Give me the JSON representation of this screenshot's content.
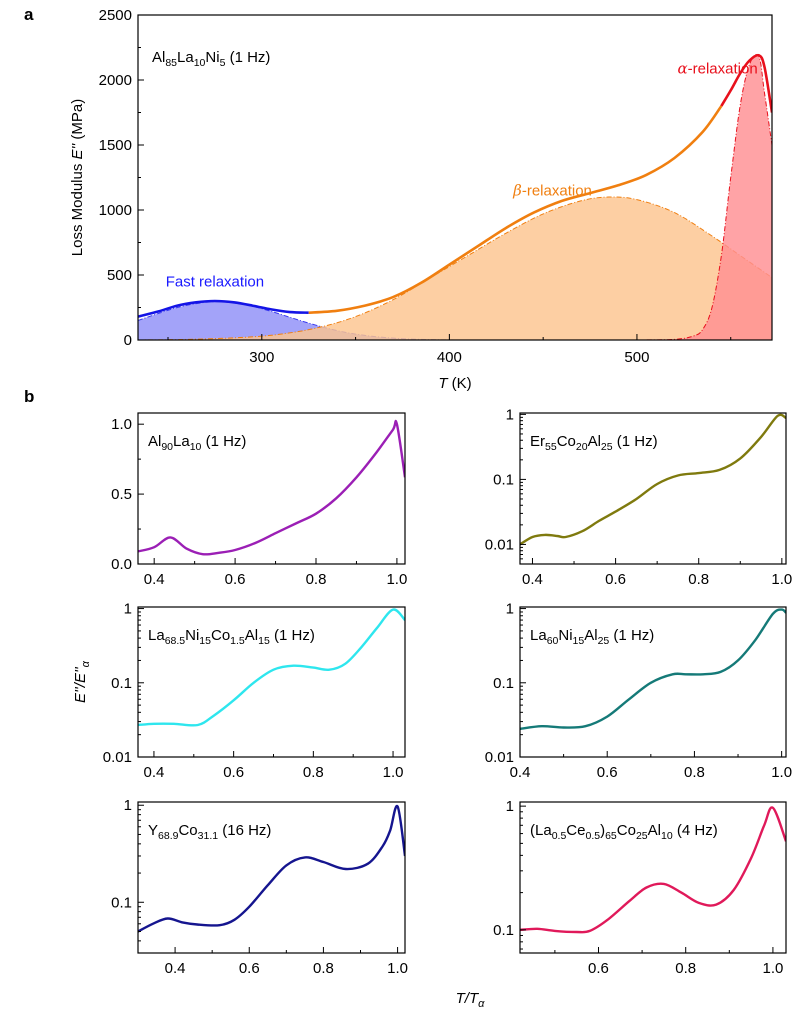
{
  "chart_data": [
    {
      "id": "a",
      "panel_label": "a",
      "type": "area",
      "title": "Al85La10Ni5 (1 Hz)",
      "title_parts": [
        [
          "Al",
          ""
        ],
        [
          "85",
          "sub"
        ],
        [
          "La",
          ""
        ],
        [
          "10",
          "sub"
        ],
        [
          "Ni",
          ""
        ],
        [
          "5",
          "sub"
        ],
        [
          " (1 Hz)",
          ""
        ]
      ],
      "xlabel": "T (K)",
      "ylabel": "Loss Modulus E'' (MPa)",
      "xlim": [
        234,
        572
      ],
      "ylim": [
        0,
        2500
      ],
      "xticks": [
        300,
        400,
        500
      ],
      "xminor": [
        250,
        350,
        450,
        550
      ],
      "yticks": [
        0,
        500,
        1000,
        1500,
        2000,
        2500
      ],
      "yminor": [
        250,
        750,
        1250,
        1750,
        2250
      ],
      "annotations": [
        {
          "text": "Fast relaxation",
          "color": "#1a1aff",
          "x": 275,
          "y": 410
        },
        {
          "text": "β-relaxation",
          "greek": "β",
          "color": "#f07f10",
          "x": 455,
          "y": 1110
        },
        {
          "text": "α-relaxation",
          "greek": "α",
          "color": "#e8101c",
          "x": 543,
          "y": 2050
        }
      ],
      "series": [
        {
          "name": "Fast relaxation fit",
          "kind": "fill",
          "fill": "#8f8ff8",
          "stroke": "#3a3af0",
          "x": [
            234,
            245,
            255,
            265,
            275,
            285,
            295,
            305,
            315,
            325,
            335,
            345,
            355,
            365,
            375,
            385,
            395,
            405
          ],
          "y": [
            150,
            205,
            250,
            280,
            295,
            285,
            260,
            220,
            175,
            130,
            90,
            58,
            35,
            20,
            10,
            5,
            2,
            0
          ]
        },
        {
          "name": "β-relaxation fit",
          "kind": "fill",
          "fill": "#fdc58f",
          "stroke": "#f07f10",
          "x": [
            234,
            260,
            290,
            310,
            330,
            350,
            370,
            390,
            410,
            430,
            450,
            470,
            485,
            500,
            520,
            540,
            555,
            572
          ],
          "y": [
            0,
            5,
            20,
            45,
            95,
            180,
            310,
            480,
            650,
            820,
            970,
            1070,
            1100,
            1080,
            980,
            800,
            650,
            480
          ]
        },
        {
          "name": "α-relaxation fit",
          "kind": "fill",
          "fill": "#ff8f92",
          "stroke": "#e8101c",
          "x": [
            500,
            520,
            530,
            535,
            540,
            545,
            550,
            555,
            560,
            565,
            568,
            572
          ],
          "y": [
            0,
            5,
            30,
            80,
            250,
            650,
            1250,
            1800,
            2120,
            2180,
            1900,
            1500
          ]
        },
        {
          "name": "Measured E''",
          "kind": "line",
          "segments": [
            {
              "color": "#1414e6",
              "x": [
                234,
                245,
                255,
                265,
                275,
                285,
                295,
                305,
                315,
                325
              ],
              "y": [
                180,
                220,
                265,
                290,
                300,
                290,
                265,
                235,
                215,
                210
              ]
            },
            {
              "color": "#f07f10",
              "x": [
                325,
                340,
                355,
                370,
                385,
                400,
                415,
                430,
                445,
                460,
                475,
                490,
                505,
                520,
                535,
                545
              ],
              "y": [
                210,
                225,
                265,
                330,
                440,
                580,
                720,
                860,
                980,
                1070,
                1130,
                1190,
                1270,
                1400,
                1600,
                1800
              ]
            },
            {
              "color": "#e8101c",
              "x": [
                545,
                550,
                555,
                560,
                565,
                568,
                572
              ],
              "y": [
                1800,
                1920,
                2050,
                2150,
                2190,
                2100,
                1750
              ]
            }
          ]
        }
      ]
    },
    {
      "id": "b1",
      "type": "line",
      "panel_label": "b",
      "title": "Al90La10 (1 Hz)",
      "title_parts": [
        [
          "Al",
          ""
        ],
        [
          "90",
          "sub"
        ],
        [
          "La",
          ""
        ],
        [
          "10",
          "sub"
        ],
        [
          " (1 Hz)",
          ""
        ]
      ],
      "yscale": "linear",
      "xlim": [
        0.36,
        1.02
      ],
      "ylim": [
        0,
        1.08
      ],
      "xticks": [
        0.4,
        0.6,
        0.8,
        1.0
      ],
      "xticklabels": [
        "0.4",
        "0.6",
        "0.8",
        "1.0"
      ],
      "yticks": [
        0,
        0.5,
        1.0
      ],
      "yticklabels": [
        "0.0",
        "0.5",
        "1.0"
      ],
      "yminor": [
        0.25,
        0.75
      ],
      "color": "#9b1fb5",
      "x": [
        0.36,
        0.4,
        0.44,
        0.48,
        0.52,
        0.56,
        0.6,
        0.65,
        0.7,
        0.75,
        0.8,
        0.85,
        0.9,
        0.95,
        0.99,
        1.0,
        1.02
      ],
      "y": [
        0.09,
        0.12,
        0.19,
        0.11,
        0.07,
        0.08,
        0.1,
        0.15,
        0.22,
        0.29,
        0.36,
        0.47,
        0.62,
        0.8,
        0.96,
        1.0,
        0.62
      ]
    },
    {
      "id": "b2",
      "type": "line",
      "title": "Er55Co20Al25 (1 Hz)",
      "title_parts": [
        [
          "Er",
          ""
        ],
        [
          "55",
          "sub"
        ],
        [
          "Co",
          ""
        ],
        [
          "20",
          "sub"
        ],
        [
          "Al",
          ""
        ],
        [
          "25",
          "sub"
        ],
        [
          " (1 Hz)",
          ""
        ]
      ],
      "yscale": "log",
      "xlim": [
        0.37,
        1.01
      ],
      "ylim": [
        0.005,
        1.05
      ],
      "xticks": [
        0.4,
        0.6,
        0.8,
        1.0
      ],
      "xticklabels": [
        "0.4",
        "0.6",
        "0.8",
        "1.0"
      ],
      "yticks": [
        0.01,
        0.1,
        1
      ],
      "yticklabels": [
        "0.01",
        "0.1",
        "1"
      ],
      "color": "#7f7a0e",
      "x": [
        0.37,
        0.4,
        0.43,
        0.46,
        0.48,
        0.52,
        0.56,
        0.6,
        0.65,
        0.7,
        0.75,
        0.8,
        0.85,
        0.9,
        0.95,
        0.99,
        1.01
      ],
      "y": [
        0.01,
        0.013,
        0.014,
        0.0135,
        0.013,
        0.016,
        0.023,
        0.032,
        0.05,
        0.085,
        0.115,
        0.125,
        0.14,
        0.21,
        0.45,
        0.95,
        0.88
      ]
    },
    {
      "id": "b3",
      "type": "line",
      "title": "La68.5Ni15Co1.5Al15 (1 Hz)",
      "title_parts": [
        [
          "La",
          ""
        ],
        [
          "68.5",
          "sub"
        ],
        [
          "Ni",
          ""
        ],
        [
          "15",
          "sub"
        ],
        [
          "Co",
          ""
        ],
        [
          "1.5",
          "sub"
        ],
        [
          "Al",
          ""
        ],
        [
          "15",
          "sub"
        ],
        [
          " (1 Hz)",
          ""
        ]
      ],
      "yscale": "log",
      "xlim": [
        0.36,
        1.03
      ],
      "ylim": [
        0.01,
        1.05
      ],
      "xticks": [
        0.4,
        0.6,
        0.8,
        1.0
      ],
      "xticklabels": [
        "0.4",
        "0.6",
        "0.8",
        "1.0"
      ],
      "yticks": [
        0.01,
        0.1,
        1
      ],
      "yticklabels": [
        "0.01",
        "0.1",
        "1"
      ],
      "color": "#2ee6ee",
      "x": [
        0.36,
        0.4,
        0.45,
        0.51,
        0.55,
        0.6,
        0.65,
        0.7,
        0.75,
        0.8,
        0.84,
        0.88,
        0.92,
        0.96,
        1.0,
        1.03
      ],
      "y": [
        0.027,
        0.028,
        0.028,
        0.027,
        0.036,
        0.058,
        0.1,
        0.15,
        0.17,
        0.16,
        0.15,
        0.18,
        0.3,
        0.55,
        0.97,
        0.7
      ]
    },
    {
      "id": "b4",
      "type": "line",
      "title": "La60Ni15Al25 (1 Hz)",
      "title_parts": [
        [
          "La",
          ""
        ],
        [
          "60",
          "sub"
        ],
        [
          "Ni",
          ""
        ],
        [
          "15",
          "sub"
        ],
        [
          "Al",
          ""
        ],
        [
          "25",
          "sub"
        ],
        [
          " (1 Hz)",
          ""
        ]
      ],
      "yscale": "log",
      "xlim": [
        0.4,
        1.01
      ],
      "ylim": [
        0.01,
        1.05
      ],
      "xticks": [
        0.4,
        0.6,
        0.8,
        1.0
      ],
      "xticklabels": [
        "0.4",
        "0.6",
        "0.8",
        "1.0"
      ],
      "yticks": [
        0.01,
        0.1,
        1
      ],
      "yticklabels": [
        "0.01",
        "0.1",
        "1"
      ],
      "color": "#157a78",
      "x": [
        0.4,
        0.45,
        0.5,
        0.55,
        0.6,
        0.65,
        0.7,
        0.75,
        0.78,
        0.82,
        0.86,
        0.9,
        0.94,
        0.98,
        1.0,
        1.01
      ],
      "y": [
        0.024,
        0.026,
        0.025,
        0.026,
        0.035,
        0.06,
        0.1,
        0.13,
        0.13,
        0.13,
        0.14,
        0.2,
        0.38,
        0.85,
        0.97,
        0.88
      ]
    },
    {
      "id": "b5",
      "type": "line",
      "title": "Y68.9Co31.1 (16 Hz)",
      "title_parts": [
        [
          "Y",
          ""
        ],
        [
          "68.9",
          "sub"
        ],
        [
          "Co",
          ""
        ],
        [
          "31.1",
          "sub"
        ],
        [
          " (16 Hz)",
          ""
        ]
      ],
      "yscale": "log",
      "xlim": [
        0.3,
        1.02
      ],
      "ylim": [
        0.03,
        1.08
      ],
      "xticks": [
        0.4,
        0.6,
        0.8,
        1.0
      ],
      "xticklabels": [
        "0.4",
        "0.6",
        "0.8",
        "1.0"
      ],
      "yticks": [
        0.1,
        1
      ],
      "yticklabels": [
        "0.1",
        "1"
      ],
      "color": "#15158f",
      "x": [
        0.3,
        0.34,
        0.38,
        0.42,
        0.46,
        0.52,
        0.56,
        0.6,
        0.65,
        0.7,
        0.75,
        0.8,
        0.86,
        0.92,
        0.96,
        0.98,
        1.0,
        1.02
      ],
      "y": [
        0.05,
        0.06,
        0.068,
        0.062,
        0.059,
        0.058,
        0.066,
        0.09,
        0.15,
        0.24,
        0.29,
        0.26,
        0.22,
        0.25,
        0.38,
        0.55,
        0.97,
        0.3
      ]
    },
    {
      "id": "b6",
      "type": "line",
      "title": "(La0.5Ce0.5)65Co25Al10 (4 Hz)",
      "title_parts": [
        [
          "(La",
          ""
        ],
        [
          "0.5",
          "sub"
        ],
        [
          "Ce",
          ""
        ],
        [
          "0.5",
          "sub"
        ],
        [
          ")",
          ""
        ],
        [
          "65",
          "sub"
        ],
        [
          "Co",
          ""
        ],
        [
          "25",
          "sub"
        ],
        [
          "Al",
          ""
        ],
        [
          "10",
          "sub"
        ],
        [
          " (4 Hz)",
          ""
        ]
      ],
      "yscale": "log",
      "xlim": [
        0.42,
        1.03
      ],
      "ylim": [
        0.065,
        1.08
      ],
      "xticks": [
        0.6,
        0.8,
        1.0
      ],
      "xticklabels": [
        "0.6",
        "0.8",
        "1.0"
      ],
      "yticks": [
        0.1,
        1
      ],
      "yticklabels": [
        "0.1",
        "1"
      ],
      "color": "#e0195a",
      "x": [
        0.42,
        0.46,
        0.5,
        0.55,
        0.58,
        0.62,
        0.67,
        0.71,
        0.75,
        0.79,
        0.83,
        0.87,
        0.91,
        0.95,
        0.98,
        1.0,
        1.03
      ],
      "y": [
        0.1,
        0.102,
        0.098,
        0.096,
        0.098,
        0.12,
        0.17,
        0.22,
        0.235,
        0.2,
        0.165,
        0.16,
        0.21,
        0.38,
        0.7,
        0.97,
        0.52
      ]
    }
  ],
  "shared": {
    "panel_b_label": "b",
    "ylabel_b": "E''/E''α",
    "xlabel_b": "T/Tα"
  }
}
